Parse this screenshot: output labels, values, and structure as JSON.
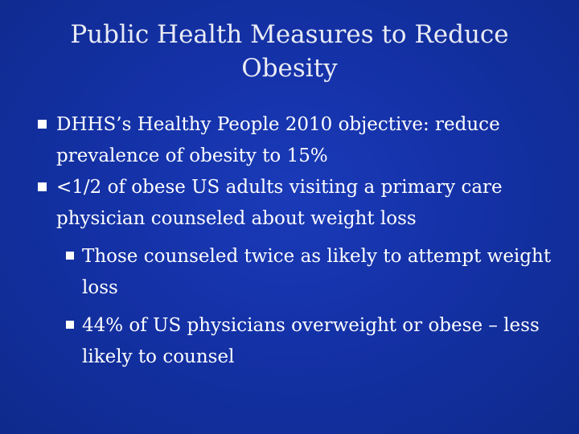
{
  "slide": {
    "title": "Public Health Measures to Reduce Obesity",
    "bullets": [
      {
        "level": 1,
        "text": "DHHS’s Healthy People 2010 objective: reduce prevalence of obesity to 15%"
      },
      {
        "level": 1,
        "text": "<1/2 of obese US adults visiting a primary care physician counseled about weight loss"
      },
      {
        "level": 2,
        "text": "Those counseled twice as likely to attempt weight loss"
      },
      {
        "level": 2,
        "text": "44% of US physicians overweight or obese – less likely to counsel"
      }
    ]
  },
  "colors": {
    "background": "#1431a6",
    "text": "#ffffff",
    "bullet_marker": "#ffffff"
  },
  "icons": {
    "bullet": "square-bullet-icon"
  }
}
